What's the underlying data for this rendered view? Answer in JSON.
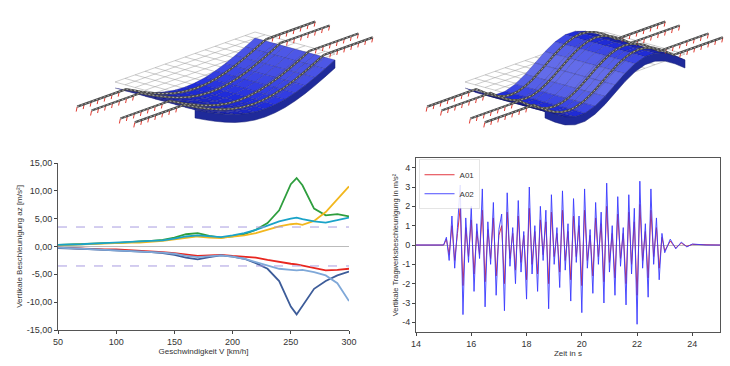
{
  "chart_data": [
    {
      "type": "line",
      "x_label": "Geschwindigkeit V [km/h]",
      "y_label": "Vertikale Beschleunigung az [m/s²]",
      "x": [
        50,
        60,
        70,
        80,
        90,
        100,
        110,
        120,
        130,
        140,
        150,
        160,
        170,
        180,
        190,
        200,
        210,
        220,
        230,
        240,
        250,
        255,
        260,
        270,
        280,
        290,
        300
      ],
      "series": [
        {
          "color": "#2e9e3e",
          "values": [
            0.3,
            0.4,
            0.4,
            0.5,
            0.6,
            0.6,
            0.8,
            0.9,
            1.0,
            1.2,
            1.6,
            2.2,
            2.4,
            1.9,
            1.6,
            1.8,
            2.2,
            3.0,
            4.2,
            6.5,
            11.2,
            12.3,
            11.0,
            6.8,
            5.6,
            5.8,
            5.4
          ]
        },
        {
          "color": "#f2b71e",
          "values": [
            0.2,
            0.3,
            0.3,
            0.4,
            0.5,
            0.6,
            0.7,
            0.7,
            0.8,
            1.0,
            1.3,
            1.6,
            1.8,
            1.6,
            1.5,
            1.8,
            2.0,
            2.4,
            3.0,
            3.6,
            4.0,
            4.1,
            3.9,
            4.6,
            6.2,
            8.5,
            10.8
          ]
        },
        {
          "color": "#1aa3c8",
          "values": [
            0.3,
            0.3,
            0.4,
            0.5,
            0.6,
            0.7,
            0.8,
            0.8,
            0.9,
            1.1,
            1.4,
            1.8,
            2.0,
            1.8,
            1.7,
            2.0,
            2.4,
            3.0,
            3.8,
            4.5,
            5.0,
            5.2,
            4.9,
            4.5,
            4.3,
            4.8,
            5.2
          ]
        },
        {
          "color": "#e8261f",
          "values": [
            -0.2,
            -0.3,
            -0.3,
            -0.4,
            -0.5,
            -0.5,
            -0.6,
            -0.7,
            -0.8,
            -1.0,
            -1.2,
            -1.5,
            -1.7,
            -1.6,
            -1.5,
            -1.7,
            -1.8,
            -2.0,
            -2.4,
            -2.8,
            -3.1,
            -3.2,
            -3.4,
            -3.9,
            -4.3,
            -4.2,
            -4.0
          ]
        },
        {
          "color": "#3d5c99",
          "values": [
            -0.3,
            -0.3,
            -0.4,
            -0.5,
            -0.6,
            -0.6,
            -0.8,
            -0.9,
            -1.0,
            -1.2,
            -1.5,
            -2.0,
            -2.3,
            -1.9,
            -1.6,
            -1.8,
            -2.2,
            -3.0,
            -4.0,
            -6.2,
            -10.8,
            -12.2,
            -10.6,
            -7.6,
            -6.2,
            -5.2,
            -4.5
          ]
        },
        {
          "color": "#7fa8d8",
          "values": [
            -0.2,
            -0.3,
            -0.3,
            -0.4,
            -0.5,
            -0.6,
            -0.7,
            -0.8,
            -0.9,
            -1.1,
            -1.3,
            -1.7,
            -1.9,
            -1.7,
            -1.6,
            -1.8,
            -2.2,
            -2.8,
            -3.4,
            -4.0,
            -4.2,
            -4.3,
            -4.2,
            -4.6,
            -5.2,
            -6.6,
            -9.8
          ]
        }
      ],
      "reference_lines": [
        3.5,
        -3.5
      ],
      "xlim": [
        50,
        300
      ],
      "xticks": [
        50,
        100,
        150,
        200,
        250,
        300
      ],
      "ylim": [
        -15,
        15
      ],
      "yticks": [
        {
          "value": -15,
          "label": "-15,00"
        },
        {
          "value": -10,
          "label": "-10,00"
        },
        {
          "value": -5,
          "label": "-5,00"
        },
        {
          "value": 0,
          "label": "0,00"
        },
        {
          "value": 5,
          "label": "5,00"
        },
        {
          "value": 10,
          "label": "10,00"
        },
        {
          "value": 15,
          "label": "15,00"
        }
      ],
      "grid": false
    },
    {
      "type": "line",
      "x_label": "Zeit in s",
      "y_label": "Vertikale Tragwerksbeschleunigung in m/s²",
      "x": [
        14,
        14.5,
        15,
        15.1,
        15.2,
        15.3,
        15.4,
        15.5,
        15.6,
        15.7,
        15.8,
        15.9,
        16.0,
        16.1,
        16.2,
        16.3,
        16.4,
        16.5,
        16.6,
        16.7,
        16.8,
        16.9,
        17.0,
        17.1,
        17.2,
        17.3,
        17.4,
        17.5,
        17.6,
        17.7,
        17.8,
        17.9,
        18.0,
        18.1,
        18.2,
        18.3,
        18.4,
        18.5,
        18.6,
        18.7,
        18.8,
        18.9,
        19.0,
        19.1,
        19.2,
        19.3,
        19.4,
        19.5,
        19.6,
        19.7,
        19.8,
        19.9,
        20.0,
        20.1,
        20.2,
        20.3,
        20.4,
        20.5,
        20.6,
        20.7,
        20.8,
        20.9,
        21.0,
        21.1,
        21.2,
        21.3,
        21.4,
        21.5,
        21.6,
        21.7,
        21.8,
        21.9,
        22.0,
        22.1,
        22.2,
        22.3,
        22.4,
        22.5,
        22.6,
        22.7,
        22.8,
        22.9,
        23.0,
        23.2,
        23.4,
        23.6,
        23.8,
        24,
        24.5,
        25
      ],
      "series": [
        {
          "name": "A01",
          "color": "#e0202a",
          "values": [
            0,
            0,
            0,
            0.3,
            -0.5,
            1.0,
            -0.8,
            0.6,
            1.9,
            -2.1,
            0.9,
            -0.6,
            1.3,
            -1.5,
            0.7,
            -0.5,
            1.8,
            -1.9,
            0.8,
            -0.7,
            1.4,
            -1.6,
            0.5,
            1.0,
            -2.0,
            1.7,
            -0.7,
            0.6,
            -1.3,
            1.5,
            -0.9,
            0.5,
            -1.8,
            1.9,
            -1.0,
            0.7,
            -1.5,
            1.3,
            -0.5,
            1.2,
            -2.0,
            1.7,
            -0.6,
            0.6,
            -1.4,
            1.8,
            -0.8,
            0.7,
            -1.8,
            1.5,
            -0.6,
            1.0,
            -2.1,
            1.8,
            -0.8,
            0.5,
            -1.6,
            1.4,
            -0.6,
            1.1,
            -1.9,
            2.0,
            -0.9,
            0.6,
            -1.7,
            1.6,
            -0.7,
            0.6,
            -2.0,
            1.7,
            -1.0,
            1.2,
            -2.6,
            2.1,
            -0.8,
            0.7,
            -1.7,
            1.8,
            -0.6,
            0.9,
            -1.2,
            0.4,
            -0.3,
            0.2,
            -0.15,
            0.1,
            -0.07,
            0.03,
            0,
            0
          ]
        },
        {
          "name": "A02",
          "color": "#3a3aff",
          "values": [
            0,
            0,
            0,
            0.4,
            -0.8,
            1.5,
            -1.2,
            0.9,
            3.1,
            -3.6,
            1.4,
            -0.9,
            2.0,
            -2.4,
            1.1,
            -0.7,
            2.9,
            -3.2,
            1.2,
            -1.0,
            2.2,
            -2.6,
            0.8,
            1.6,
            -3.4,
            2.7,
            -1.1,
            0.9,
            -2.0,
            2.3,
            -1.4,
            0.7,
            -2.8,
            3.0,
            -1.5,
            1.0,
            -2.4,
            2.0,
            -0.8,
            1.8,
            -3.3,
            2.6,
            -1.0,
            0.9,
            -2.2,
            2.8,
            -1.3,
            1.1,
            -2.9,
            2.4,
            -0.9,
            1.5,
            -3.5,
            2.9,
            -1.2,
            0.8,
            -2.5,
            2.2,
            -1.0,
            1.7,
            -3.0,
            3.2,
            -1.4,
            1.0,
            -2.6,
            2.5,
            -1.1,
            0.9,
            -3.1,
            2.6,
            -1.5,
            1.9,
            -4.1,
            3.3,
            -1.2,
            1.1,
            -2.7,
            2.9,
            -1.0,
            1.4,
            -1.8,
            0.6,
            -0.4,
            0.3,
            -0.2,
            0.15,
            -0.1,
            0.05,
            0,
            0
          ]
        }
      ],
      "legend": "top left",
      "xlim": [
        14,
        25
      ],
      "xticks": [
        14,
        16,
        18,
        20,
        22,
        24
      ],
      "ylim": [
        -4.5,
        4.5
      ],
      "yticks": [
        -4,
        -3,
        -2,
        -1,
        0,
        1,
        2,
        3,
        4
      ],
      "grid": false
    }
  ]
}
